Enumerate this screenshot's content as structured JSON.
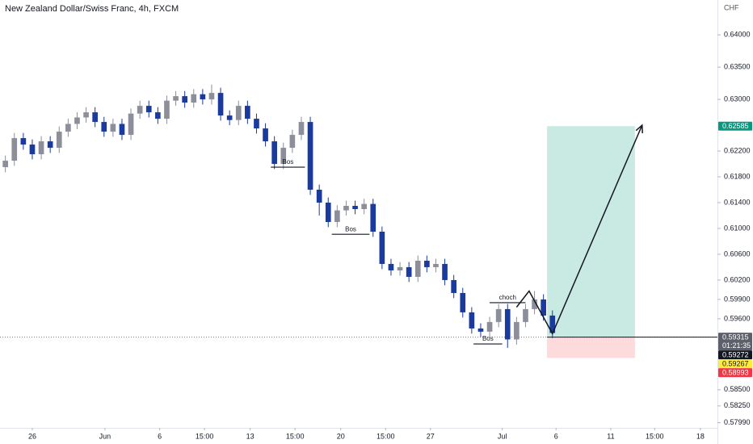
{
  "chart_data": {
    "type": "candlestick",
    "title": "New Zealand Dollar/Swiss Franc, 4h, FXCM",
    "y_axis_label": "CHF",
    "up_color": "#8c8f99",
    "down_color": "#1a3a9e",
    "grid": false,
    "x": [
      -1.5,
      -1,
      -0.5,
      0,
      0.5,
      1,
      1.5,
      2,
      2.5,
      3,
      3.5,
      4,
      4.5,
      5,
      5.5,
      6,
      6.5,
      7,
      7.5,
      8,
      8.5,
      9,
      9.5,
      10,
      10.5,
      11,
      11.5,
      12,
      12.5,
      13,
      13.5,
      14,
      14.5,
      15,
      15.5,
      16,
      16.5,
      17,
      17.5,
      18,
      18.5,
      19,
      19.5,
      20,
      20.5,
      21,
      21.5,
      22,
      22.5,
      23,
      23.5,
      24,
      24.5,
      25,
      25.5,
      26,
      26.5,
      27,
      27.5,
      28,
      28.5,
      29
    ],
    "open": [
      0.6195,
      0.6205,
      0.624,
      0.623,
      0.6215,
      0.6235,
      0.6225,
      0.625,
      0.6262,
      0.6272,
      0.628,
      0.6265,
      0.625,
      0.6262,
      0.6245,
      0.6278,
      0.629,
      0.628,
      0.627,
      0.6298,
      0.6305,
      0.6295,
      0.6308,
      0.63,
      0.631,
      0.6275,
      0.6268,
      0.629,
      0.627,
      0.6255,
      0.6235,
      0.62,
      0.6225,
      0.6245,
      0.6265,
      0.616,
      0.614,
      0.611,
      0.6128,
      0.6135,
      0.613,
      0.6138,
      0.6095,
      0.6045,
      0.6035,
      0.604,
      0.6025,
      0.605,
      0.604,
      0.6045,
      0.602,
      0.6,
      0.597,
      0.5945,
      0.594,
      0.5955,
      0.5975,
      0.5928,
      0.5955,
      0.5975,
      0.599,
      0.5965
    ],
    "high": [
      0.6213,
      0.6248,
      0.6248,
      0.6238,
      0.6243,
      0.6243,
      0.6258,
      0.627,
      0.628,
      0.6288,
      0.6288,
      0.6273,
      0.627,
      0.627,
      0.6286,
      0.6298,
      0.6298,
      0.6288,
      0.6306,
      0.6313,
      0.6313,
      0.6316,
      0.6316,
      0.6323,
      0.6318,
      0.6283,
      0.6298,
      0.6298,
      0.6278,
      0.6263,
      0.6243,
      0.6233,
      0.6253,
      0.6273,
      0.6273,
      0.6168,
      0.6148,
      0.6136,
      0.6143,
      0.6143,
      0.6146,
      0.6146,
      0.6103,
      0.6053,
      0.6048,
      0.6048,
      0.6058,
      0.6058,
      0.6053,
      0.6053,
      0.6028,
      0.6008,
      0.5978,
      0.5953,
      0.5963,
      0.5983,
      0.5983,
      0.5963,
      0.5983,
      0.6003,
      0.5998,
      0.5973
    ],
    "low": [
      0.6187,
      0.6197,
      0.6222,
      0.6207,
      0.6207,
      0.6217,
      0.6217,
      0.6242,
      0.6254,
      0.6264,
      0.6257,
      0.6242,
      0.6242,
      0.6237,
      0.6237,
      0.627,
      0.6272,
      0.6262,
      0.6262,
      0.629,
      0.6287,
      0.6287,
      0.6292,
      0.6292,
      0.6267,
      0.626,
      0.626,
      0.6262,
      0.6247,
      0.6227,
      0.6192,
      0.6192,
      0.6217,
      0.6237,
      0.6152,
      0.612,
      0.6102,
      0.6102,
      0.612,
      0.6122,
      0.6122,
      0.6087,
      0.6037,
      0.6027,
      0.6027,
      0.6017,
      0.6017,
      0.6032,
      0.6032,
      0.6012,
      0.5992,
      0.5962,
      0.5937,
      0.5932,
      0.5932,
      0.5947,
      0.5915,
      0.592,
      0.5947,
      0.5967,
      0.5957,
      0.593
    ],
    "close": [
      0.6205,
      0.624,
      0.623,
      0.6215,
      0.6235,
      0.6225,
      0.625,
      0.6262,
      0.6272,
      0.628,
      0.6265,
      0.625,
      0.6262,
      0.6245,
      0.6278,
      0.629,
      0.628,
      0.627,
      0.6298,
      0.6305,
      0.6295,
      0.6308,
      0.63,
      0.631,
      0.6275,
      0.6268,
      0.629,
      0.627,
      0.6255,
      0.6235,
      0.62,
      0.6225,
      0.6245,
      0.6265,
      0.616,
      0.614,
      0.611,
      0.6128,
      0.6135,
      0.613,
      0.6138,
      0.6095,
      0.6045,
      0.6035,
      0.604,
      0.6025,
      0.605,
      0.604,
      0.6045,
      0.602,
      0.6,
      0.597,
      0.5945,
      0.594,
      0.5955,
      0.5975,
      0.5928,
      0.5955,
      0.5975,
      0.599,
      0.5965,
      0.5938
    ],
    "xlim": [
      -1.8,
      38.2
    ],
    "ylim": [
      0.5791,
      0.6454
    ],
    "xticks": [
      {
        "value": 0,
        "label": "26"
      },
      {
        "value": 4.05,
        "label": "Jun"
      },
      {
        "value": 7.1,
        "label": "6"
      },
      {
        "value": 9.6,
        "label": "15:00"
      },
      {
        "value": 12.15,
        "label": "13"
      },
      {
        "value": 14.65,
        "label": "15:00"
      },
      {
        "value": 17.2,
        "label": "20"
      },
      {
        "value": 19.7,
        "label": "15:00"
      },
      {
        "value": 22.2,
        "label": "27"
      },
      {
        "value": 26.2,
        "label": "Jul"
      },
      {
        "value": 29.2,
        "label": "6"
      },
      {
        "value": 32.25,
        "label": "11"
      },
      {
        "value": 34.7,
        "label": "15:00"
      },
      {
        "value": 37.25,
        "label": "18"
      }
    ],
    "yticks": [
      {
        "value": 0.64,
        "label": "0.64000"
      },
      {
        "value": 0.635,
        "label": "0.63500"
      },
      {
        "value": 0.63,
        "label": "0.63000"
      },
      {
        "value": 0.622,
        "label": "0.62200"
      },
      {
        "value": 0.618,
        "label": "0.61800"
      },
      {
        "value": 0.614,
        "label": "0.61400"
      },
      {
        "value": 0.61,
        "label": "0.61000"
      },
      {
        "value": 0.606,
        "label": "0.60600"
      },
      {
        "value": 0.602,
        "label": "0.60200"
      },
      {
        "value": 0.599,
        "label": "0.59900"
      },
      {
        "value": 0.596,
        "label": "0.59600"
      },
      {
        "value": 0.585,
        "label": "0.58500"
      },
      {
        "value": 0.5825,
        "label": "0.58250"
      },
      {
        "value": 0.5799,
        "label": "0.57990"
      }
    ],
    "levels": [
      {
        "label": "Bos",
        "price": 0.6195,
        "x": [
          13.3,
          15.2
        ]
      },
      {
        "label": "Bos",
        "price": 0.6091,
        "x": [
          16.7,
          18.8
        ]
      },
      {
        "label": "Bos",
        "price": 0.5921,
        "x": [
          24.6,
          26.2
        ]
      },
      {
        "label": "choch",
        "price": 0.5985,
        "x": [
          25.5,
          27.5
        ]
      }
    ],
    "position": {
      "x": [
        28.7,
        33.6
      ],
      "entry": 0.59315,
      "target": 0.62585,
      "stop": 0.58993
    },
    "path": [
      [
        27.0,
        0.5978
      ],
      [
        27.7,
        0.6003
      ],
      [
        29.0,
        0.5937
      ],
      [
        34.0,
        0.626
      ]
    ],
    "current_price": 0.59315,
    "price_tags": [
      {
        "value": 0.62585,
        "label": "0.62585",
        "color": "#089981",
        "text_color": "#ffffff"
      },
      {
        "value": 0.59315,
        "label": "0.59315",
        "sub": "01:21:35",
        "color": "#5d606b",
        "text_color": "#ffffff"
      },
      {
        "value": 0.59272,
        "label": "0.59272",
        "color": "#131722",
        "text_color": "#ffffff"
      },
      {
        "value": 0.59267,
        "label": "0.59267",
        "color": "#ffeb3b",
        "text_color": "#131722"
      },
      {
        "value": 0.58993,
        "label": "0.58993",
        "color": "#f23645",
        "text_color": "#ffffff"
      }
    ]
  }
}
